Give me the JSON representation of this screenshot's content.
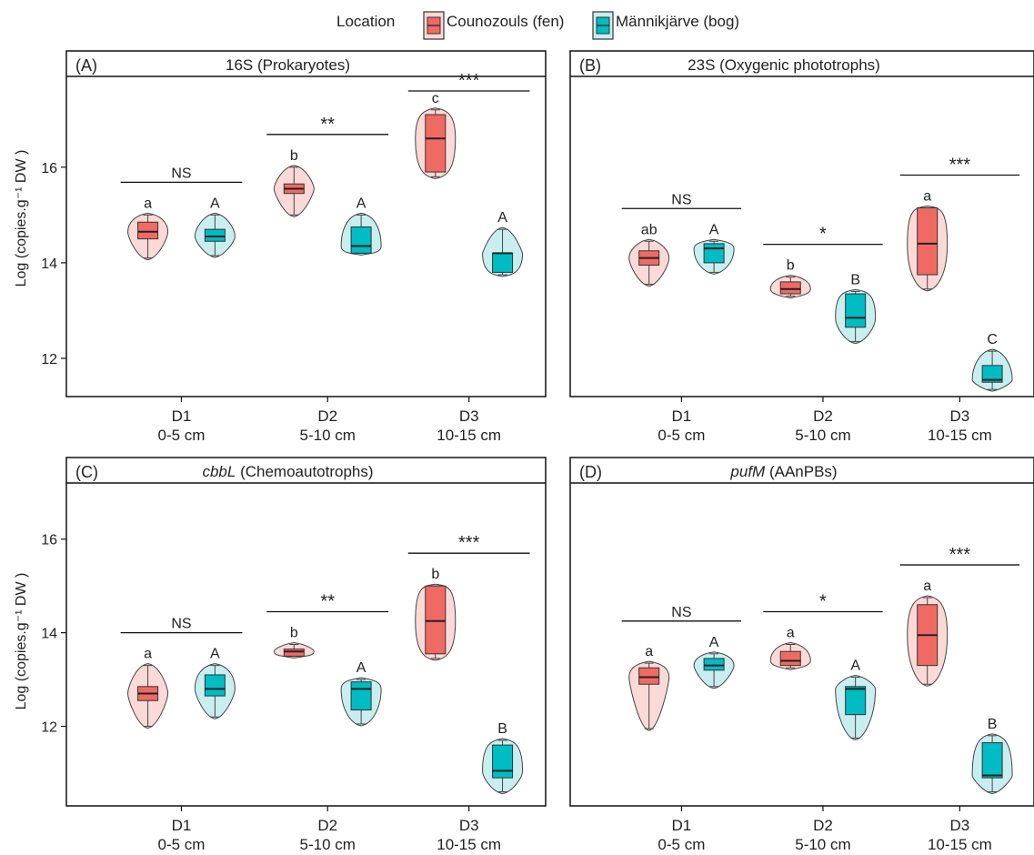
{
  "legend": {
    "title": "Location",
    "items": [
      {
        "label": "Counozouls (fen)",
        "color": "#f06a64",
        "light": "#fbd9d6"
      },
      {
        "label": "Männikjärve (bog)",
        "color": "#00bcc3",
        "light": "#c9eef0"
      }
    ]
  },
  "y_axis_label": "Log (copies.g⁻¹ DW )",
  "categories": [
    {
      "code": "D1",
      "depth": "0-5 cm"
    },
    {
      "code": "D2",
      "depth": "5-10 cm"
    },
    {
      "code": "D3",
      "depth": "10-15 cm"
    }
  ],
  "chart_data": [
    {
      "type": "violin-box",
      "panel": "(A)",
      "gene": "16S",
      "title_rest": " (Prokaryotes)",
      "italic": false,
      "ylim": [
        11.2,
        17.9
      ],
      "yticks": [
        12,
        14,
        16
      ],
      "groups": [
        {
          "category": "D1",
          "fen": {
            "min": 14.1,
            "q1": 14.5,
            "median": 14.65,
            "q3": 14.85,
            "max": 15.0,
            "letter": "a"
          },
          "bog": {
            "min": 14.15,
            "q1": 14.45,
            "median": 14.55,
            "q3": 14.7,
            "max": 15.0,
            "letter": "A"
          },
          "sig": "NS"
        },
        {
          "category": "D2",
          "fen": {
            "min": 15.0,
            "q1": 15.45,
            "median": 15.55,
            "q3": 15.65,
            "max": 16.0,
            "letter": "b"
          },
          "bog": {
            "min": 14.2,
            "q1": 14.2,
            "median": 14.35,
            "q3": 14.75,
            "max": 15.0,
            "letter": "A"
          },
          "sig": "**"
        },
        {
          "category": "D3",
          "fen": {
            "min": 15.8,
            "q1": 15.9,
            "median": 16.6,
            "q3": 17.1,
            "max": 17.2,
            "letter": "c"
          },
          "bog": {
            "min": 13.75,
            "q1": 13.8,
            "median": 14.2,
            "q3": 14.2,
            "max": 14.7,
            "letter": "A"
          },
          "sig": "***"
        }
      ]
    },
    {
      "type": "violin-box",
      "panel": "(B)",
      "gene": "23S",
      "title_rest": " (Oxygenic phototrophs)",
      "italic": false,
      "ylim": [
        11.2,
        17.9
      ],
      "yticks": [],
      "groups": [
        {
          "category": "D1",
          "fen": {
            "min": 13.55,
            "q1": 13.95,
            "median": 14.1,
            "q3": 14.25,
            "max": 14.45,
            "letter": "ab"
          },
          "bog": {
            "min": 13.8,
            "q1": 14.0,
            "median": 14.3,
            "q3": 14.4,
            "max": 14.45,
            "letter": "A"
          },
          "sig": "NS"
        },
        {
          "category": "D2",
          "fen": {
            "min": 13.3,
            "q1": 13.35,
            "median": 13.45,
            "q3": 13.6,
            "max": 13.7,
            "letter": "b"
          },
          "bog": {
            "min": 12.35,
            "q1": 12.65,
            "median": 12.85,
            "q3": 13.35,
            "max": 13.4,
            "letter": "B"
          },
          "sig": "*"
        },
        {
          "category": "D3",
          "fen": {
            "min": 13.45,
            "q1": 13.75,
            "median": 14.4,
            "q3": 15.15,
            "max": 15.15,
            "letter": "a"
          },
          "bog": {
            "min": 11.35,
            "q1": 11.5,
            "median": 11.55,
            "q3": 11.85,
            "max": 12.15,
            "letter": "C"
          },
          "sig": "***"
        }
      ]
    },
    {
      "type": "violin-box",
      "panel": "(C)",
      "gene": "cbbL",
      "title_rest": " (Chemoautotrophs)",
      "italic": true,
      "ylim": [
        10.3,
        17.2
      ],
      "yticks": [
        12,
        14,
        16
      ],
      "groups": [
        {
          "category": "D1",
          "fen": {
            "min": 12.0,
            "q1": 12.55,
            "median": 12.7,
            "q3": 12.85,
            "max": 13.3,
            "letter": "a"
          },
          "bog": {
            "min": 12.2,
            "q1": 12.65,
            "median": 12.8,
            "q3": 13.1,
            "max": 13.3,
            "letter": "A"
          },
          "sig": "NS"
        },
        {
          "category": "D2",
          "fen": {
            "min": 13.5,
            "q1": 13.5,
            "median": 13.6,
            "q3": 13.65,
            "max": 13.75,
            "letter": "b"
          },
          "bog": {
            "min": 12.05,
            "q1": 12.35,
            "median": 12.8,
            "q3": 12.95,
            "max": 13.0,
            "letter": "A"
          },
          "sig": "**"
        },
        {
          "category": "D3",
          "fen": {
            "min": 13.45,
            "q1": 13.55,
            "median": 14.25,
            "q3": 15.0,
            "max": 15.0,
            "letter": "b"
          },
          "bog": {
            "min": 10.6,
            "q1": 10.9,
            "median": 11.05,
            "q3": 11.6,
            "max": 11.7,
            "letter": "B"
          },
          "sig": "***"
        }
      ]
    },
    {
      "type": "violin-box",
      "panel": "(D)",
      "gene": "pufM",
      "title_rest": " (AAnPBs)",
      "italic": true,
      "ylim": [
        10.3,
        17.2
      ],
      "yticks": [],
      "groups": [
        {
          "category": "D1",
          "fen": {
            "min": 11.95,
            "q1": 12.9,
            "median": 13.05,
            "q3": 13.25,
            "max": 13.35,
            "letter": "a"
          },
          "bog": {
            "min": 12.85,
            "q1": 13.2,
            "median": 13.3,
            "q3": 13.45,
            "max": 13.55,
            "letter": "A"
          },
          "sig": "NS"
        },
        {
          "category": "D2",
          "fen": {
            "min": 13.25,
            "q1": 13.3,
            "median": 13.4,
            "q3": 13.6,
            "max": 13.75,
            "letter": "a"
          },
          "bog": {
            "min": 11.75,
            "q1": 12.25,
            "median": 12.8,
            "q3": 12.85,
            "max": 13.05,
            "letter": "A"
          },
          "sig": "*"
        },
        {
          "category": "D3",
          "fen": {
            "min": 12.9,
            "q1": 13.3,
            "median": 13.95,
            "q3": 14.6,
            "max": 14.75,
            "letter": "a"
          },
          "bog": {
            "min": 10.6,
            "q1": 10.9,
            "median": 10.95,
            "q3": 11.65,
            "max": 11.8,
            "letter": "B"
          },
          "sig": "***"
        }
      ]
    }
  ]
}
